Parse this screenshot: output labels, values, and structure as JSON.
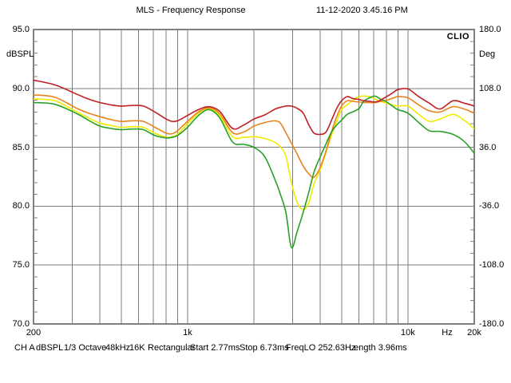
{
  "header": {
    "title": "MLS - Frequency Response",
    "timestamp": "11-12-2020 3.45.16 PM"
  },
  "plot": {
    "logo": "CLIO",
    "y_left": {
      "label": "dBSPL",
      "ticks": [
        {
          "v": 95,
          "label": "95.0"
        },
        {
          "v": 90,
          "label": "90.0"
        },
        {
          "v": 85,
          "label": "85.0"
        },
        {
          "v": 80,
          "label": "80.0"
        },
        {
          "v": 75,
          "label": "75.0"
        },
        {
          "v": 70,
          "label": "70.0"
        }
      ],
      "gridlines": [
        90,
        85,
        80,
        75
      ],
      "minor_tick_step_db": 1
    },
    "y_right": {
      "label": "Deg",
      "ticks": [
        {
          "v": 95,
          "label": "180.0"
        },
        {
          "v": 90,
          "label": "108.0"
        },
        {
          "v": 85,
          "label": "36.0"
        },
        {
          "v": 80,
          "label": "-36.0"
        },
        {
          "v": 75,
          "label": "-108.0"
        },
        {
          "v": 70,
          "label": "-180.0"
        }
      ]
    },
    "x_axis": {
      "unit": "Hz",
      "ticks": [
        {
          "f": 200,
          "label": "200"
        },
        {
          "f": 1000,
          "label": "1k"
        },
        {
          "f": 10000,
          "label": "10k"
        },
        {
          "f": 20000,
          "label": "20k"
        }
      ],
      "gridlines": [
        300,
        400,
        500,
        600,
        700,
        800,
        900,
        1000,
        2000,
        3000,
        4000,
        5000,
        6000,
        7000,
        8000,
        9000,
        10000
      ]
    },
    "frame_color": "#808080",
    "grid_color": "#7c7c7c"
  },
  "status_bar": {
    "items": [
      "CH A",
      "dBSPL",
      "1/3 Octave",
      "48kHz",
      "16K",
      "Rectangular",
      "Start 2.77ms",
      "Stop 6.73ms",
      "FreqLO 252.63Hz",
      "Length 3.96ms"
    ]
  },
  "chart_data": {
    "type": "line",
    "title": "MLS - Frequency Response",
    "x_scale": "log",
    "xlim": [
      200,
      20000
    ],
    "x_unit": "Hz",
    "ylabel_left": "dBSPL",
    "ylim_left": [
      70,
      95
    ],
    "ylabel_right": "Deg",
    "ylim_right": [
      -180,
      180
    ],
    "grid": true,
    "x": [
      200,
      250,
      315,
      355,
      400,
      450,
      500,
      560,
      630,
      710,
      800,
      850,
      900,
      1000,
      1120,
      1250,
      1400,
      1600,
      1800,
      2000,
      2240,
      2500,
      2650,
      2800,
      2960,
      3150,
      3350,
      3550,
      3750,
      4000,
      4250,
      4500,
      4750,
      5000,
      5300,
      5600,
      6000,
      6300,
      6700,
      7100,
      7500,
      8000,
      8500,
      9000,
      10000,
      11200,
      12500,
      14000,
      16000,
      18000,
      20000
    ],
    "series": [
      {
        "name": "curve-yellow",
        "color": "#f0ec00",
        "values": [
          89.1,
          88.95,
          88.0,
          87.5,
          87.05,
          86.85,
          86.7,
          86.75,
          86.7,
          86.2,
          85.85,
          85.9,
          86.1,
          87.0,
          87.9,
          88.3,
          87.7,
          85.9,
          85.85,
          85.9,
          85.75,
          85.4,
          85.0,
          84.2,
          82.0,
          80.3,
          79.7,
          80.3,
          81.9,
          83.1,
          84.6,
          86.0,
          87.2,
          88.2,
          88.6,
          89.0,
          89.3,
          89.35,
          89.3,
          89.1,
          88.9,
          88.75,
          88.6,
          88.5,
          88.5,
          87.8,
          87.2,
          87.4,
          87.8,
          87.3,
          86.55
        ]
      },
      {
        "name": "curve-orange",
        "color": "#e8821e",
        "values": [
          89.45,
          89.25,
          88.3,
          87.9,
          87.6,
          87.35,
          87.2,
          87.25,
          87.2,
          86.7,
          86.2,
          86.15,
          86.4,
          87.2,
          88.0,
          88.35,
          87.85,
          86.25,
          86.3,
          86.8,
          87.1,
          87.25,
          87.0,
          86.2,
          85.35,
          84.4,
          83.4,
          82.75,
          82.45,
          83.3,
          84.7,
          86.3,
          87.6,
          88.5,
          88.95,
          88.9,
          88.85,
          88.8,
          88.8,
          88.8,
          88.9,
          89.0,
          89.15,
          89.3,
          89.2,
          88.6,
          88.1,
          88.0,
          88.45,
          88.25,
          87.9
        ]
      },
      {
        "name": "curve-green",
        "color": "#28a028",
        "values": [
          88.8,
          88.65,
          87.85,
          87.3,
          86.8,
          86.6,
          86.5,
          86.55,
          86.5,
          86.0,
          85.8,
          85.85,
          86.0,
          86.7,
          87.7,
          88.2,
          87.5,
          85.45,
          85.25,
          85.0,
          84.2,
          82.2,
          80.9,
          79.4,
          76.5,
          77.9,
          79.5,
          81.2,
          82.9,
          84.2,
          85.3,
          86.3,
          86.9,
          87.3,
          87.8,
          88.0,
          88.3,
          88.9,
          89.2,
          89.35,
          89.1,
          88.85,
          88.5,
          88.2,
          87.9,
          87.1,
          86.4,
          86.35,
          86.1,
          85.5,
          84.5
        ]
      },
      {
        "name": "curve-red",
        "color": "#bf2026",
        "values": [
          90.7,
          90.3,
          89.5,
          89.1,
          88.8,
          88.6,
          88.5,
          88.55,
          88.5,
          88.0,
          87.4,
          87.2,
          87.25,
          87.7,
          88.2,
          88.45,
          88.05,
          86.6,
          86.9,
          87.4,
          87.75,
          88.25,
          88.4,
          88.5,
          88.5,
          88.3,
          87.9,
          86.9,
          86.2,
          86.1,
          86.3,
          87.3,
          88.3,
          88.95,
          89.3,
          89.15,
          89.05,
          88.95,
          88.9,
          88.85,
          89.0,
          89.3,
          89.6,
          89.9,
          89.95,
          89.3,
          88.75,
          88.25,
          88.95,
          88.75,
          88.5
        ]
      }
    ]
  }
}
